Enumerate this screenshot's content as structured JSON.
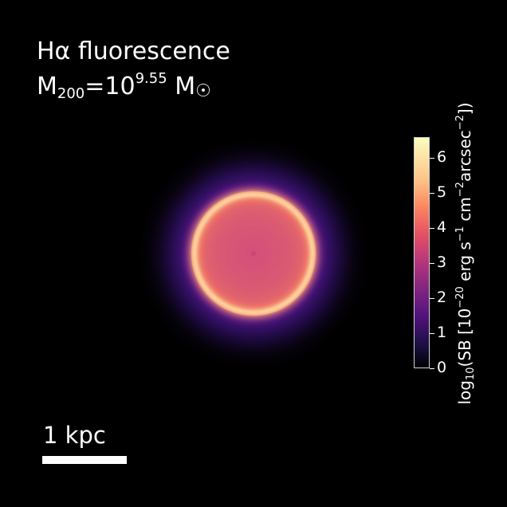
{
  "title": {
    "line1": "Hα fluorescence",
    "mass_prefix": "M",
    "mass_subscript": "200",
    "mass_equals": "=10",
    "mass_exponent": "9.55",
    "mass_unit": "M",
    "mass_unit_symbol": "☉"
  },
  "colorbar": {
    "min": 0,
    "max": 6.6,
    "tick_labels": [
      "0",
      "1",
      "2",
      "3",
      "4",
      "5",
      "6"
    ],
    "label": {
      "prefix": "log",
      "log_base": "10",
      "open": "(SB [10",
      "exp1": "−20",
      "mid1": " erg s",
      "exp2": "−1",
      "mid2": " cm",
      "exp3": "−2",
      "mid3": "arcsec",
      "exp4": "−2",
      "close": "])"
    },
    "colormap": "magma"
  },
  "image": {
    "description_colors": {
      "ring": "#fde0a8",
      "disc": "#d8566e",
      "halo": "#4a1a8a",
      "background": "#000000"
    }
  },
  "scale_bar": {
    "label": "1 kpc"
  }
}
